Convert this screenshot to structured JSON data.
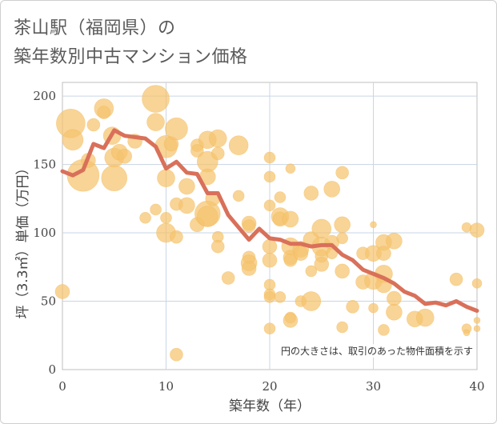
{
  "title_line1": "茶山駅（福岡県）の",
  "title_line2": "築年数別中古マンション価格",
  "chart_data": {
    "type": "scatter",
    "xlabel": "築年数（年）",
    "ylabel": "坪（3.3㎡）単価（万円）",
    "xlim": [
      0,
      40
    ],
    "ylim": [
      0,
      210
    ],
    "xticks": [
      0,
      10,
      20,
      30,
      40
    ],
    "yticks": [
      0,
      50,
      100,
      150,
      200
    ],
    "grid": true,
    "annotation": "円の大きさは、取引のあった物件面積を示す",
    "bubble_color": "#f5c36e",
    "line_color": "#d9705a",
    "bubbles": [
      {
        "x": 0,
        "y": 57,
        "s": 9
      },
      {
        "x": 0.8,
        "y": 180,
        "s": 18
      },
      {
        "x": 1,
        "y": 168,
        "s": 13
      },
      {
        "x": 2,
        "y": 142,
        "s": 20
      },
      {
        "x": 2.5,
        "y": 153,
        "s": 9
      },
      {
        "x": 3,
        "y": 179,
        "s": 8
      },
      {
        "x": 4,
        "y": 191,
        "s": 12
      },
      {
        "x": 4,
        "y": 188,
        "s": 8
      },
      {
        "x": 4.8,
        "y": 171,
        "s": 11
      },
      {
        "x": 5,
        "y": 155,
        "s": 12
      },
      {
        "x": 5,
        "y": 140,
        "s": 16
      },
      {
        "x": 5.5,
        "y": 159,
        "s": 10
      },
      {
        "x": 6,
        "y": 156,
        "s": 9
      },
      {
        "x": 7,
        "y": 167,
        "s": 9
      },
      {
        "x": 8,
        "y": 111,
        "s": 7
      },
      {
        "x": 9,
        "y": 198,
        "s": 17
      },
      {
        "x": 9,
        "y": 181,
        "s": 11
      },
      {
        "x": 9,
        "y": 117,
        "s": 7
      },
      {
        "x": 10,
        "y": 163,
        "s": 14
      },
      {
        "x": 10,
        "y": 140,
        "s": 11
      },
      {
        "x": 10,
        "y": 111,
        "s": 7
      },
      {
        "x": 10,
        "y": 100,
        "s": 12
      },
      {
        "x": 10.5,
        "y": 165,
        "s": 9
      },
      {
        "x": 11,
        "y": 176,
        "s": 14
      },
      {
        "x": 11,
        "y": 121,
        "s": 8
      },
      {
        "x": 11,
        "y": 97,
        "s": 8
      },
      {
        "x": 11,
        "y": 11,
        "s": 8
      },
      {
        "x": 12,
        "y": 134,
        "s": 10
      },
      {
        "x": 12,
        "y": 120,
        "s": 10
      },
      {
        "x": 13,
        "y": 164,
        "s": 8
      },
      {
        "x": 13,
        "y": 160,
        "s": 8
      },
      {
        "x": 13,
        "y": 106,
        "s": 9
      },
      {
        "x": 14,
        "y": 168,
        "s": 11
      },
      {
        "x": 14,
        "y": 152,
        "s": 13
      },
      {
        "x": 14,
        "y": 141,
        "s": 10
      },
      {
        "x": 14,
        "y": 114,
        "s": 16
      },
      {
        "x": 14,
        "y": 112,
        "s": 13
      },
      {
        "x": 14.5,
        "y": 125,
        "s": 9
      },
      {
        "x": 15,
        "y": 169,
        "s": 11
      },
      {
        "x": 15,
        "y": 158,
        "s": 8
      },
      {
        "x": 15,
        "y": 97,
        "s": 7
      },
      {
        "x": 15,
        "y": 90,
        "s": 8
      },
      {
        "x": 16,
        "y": 67,
        "s": 8
      },
      {
        "x": 17,
        "y": 164,
        "s": 12
      },
      {
        "x": 17,
        "y": 127,
        "s": 7
      },
      {
        "x": 18,
        "y": 107,
        "s": 9
      },
      {
        "x": 18,
        "y": 105,
        "s": 8
      },
      {
        "x": 18,
        "y": 82,
        "s": 8
      },
      {
        "x": 18,
        "y": 78,
        "s": 10
      },
      {
        "x": 18,
        "y": 74,
        "s": 9
      },
      {
        "x": 20,
        "y": 155,
        "s": 7
      },
      {
        "x": 20,
        "y": 141,
        "s": 7
      },
      {
        "x": 20,
        "y": 120,
        "s": 7
      },
      {
        "x": 20,
        "y": 90,
        "s": 9
      },
      {
        "x": 20,
        "y": 80,
        "s": 9
      },
      {
        "x": 20,
        "y": 62,
        "s": 7
      },
      {
        "x": 20,
        "y": 55,
        "s": 7
      },
      {
        "x": 20,
        "y": 53,
        "s": 7
      },
      {
        "x": 20,
        "y": 30,
        "s": 7
      },
      {
        "x": 21,
        "y": 126,
        "s": 7
      },
      {
        "x": 21,
        "y": 112,
        "s": 11
      },
      {
        "x": 21,
        "y": 110,
        "s": 9
      },
      {
        "x": 21,
        "y": 53,
        "s": 7
      },
      {
        "x": 22,
        "y": 147,
        "s": 6
      },
      {
        "x": 22,
        "y": 110,
        "s": 10
      },
      {
        "x": 22,
        "y": 90,
        "s": 11
      },
      {
        "x": 22,
        "y": 82,
        "s": 9
      },
      {
        "x": 22,
        "y": 80,
        "s": 8
      },
      {
        "x": 22,
        "y": 38,
        "s": 7
      },
      {
        "x": 22,
        "y": 36,
        "s": 9
      },
      {
        "x": 23,
        "y": 88,
        "s": 10
      },
      {
        "x": 23,
        "y": 85,
        "s": 9
      },
      {
        "x": 23,
        "y": 50,
        "s": 7
      },
      {
        "x": 24,
        "y": 129,
        "s": 9
      },
      {
        "x": 24,
        "y": 95,
        "s": 10
      },
      {
        "x": 24,
        "y": 72,
        "s": 7
      },
      {
        "x": 24,
        "y": 50,
        "s": 12
      },
      {
        "x": 25,
        "y": 103,
        "s": 12
      },
      {
        "x": 25,
        "y": 90,
        "s": 12
      },
      {
        "x": 25,
        "y": 83,
        "s": 8
      },
      {
        "x": 25,
        "y": 77,
        "s": 9
      },
      {
        "x": 26,
        "y": 132,
        "s": 10
      },
      {
        "x": 26,
        "y": 93,
        "s": 9
      },
      {
        "x": 26,
        "y": 85,
        "s": 7
      },
      {
        "x": 27,
        "y": 144,
        "s": 8
      },
      {
        "x": 27,
        "y": 106,
        "s": 10
      },
      {
        "x": 27,
        "y": 96,
        "s": 7
      },
      {
        "x": 27,
        "y": 72,
        "s": 9
      },
      {
        "x": 27,
        "y": 31,
        "s": 7
      },
      {
        "x": 28,
        "y": 46,
        "s": 8
      },
      {
        "x": 29,
        "y": 85,
        "s": 8
      },
      {
        "x": 29,
        "y": 64,
        "s": 9
      },
      {
        "x": 30,
        "y": 106,
        "s": 4
      },
      {
        "x": 30,
        "y": 85,
        "s": 10
      },
      {
        "x": 30,
        "y": 65,
        "s": 11
      },
      {
        "x": 30,
        "y": 45,
        "s": 6
      },
      {
        "x": 31,
        "y": 93,
        "s": 10
      },
      {
        "x": 31,
        "y": 85,
        "s": 9
      },
      {
        "x": 31,
        "y": 70,
        "s": 11
      },
      {
        "x": 31,
        "y": 62,
        "s": 10
      },
      {
        "x": 31,
        "y": 29,
        "s": 7
      },
      {
        "x": 32,
        "y": 94,
        "s": 10
      },
      {
        "x": 32,
        "y": 52,
        "s": 9
      },
      {
        "x": 32,
        "y": 42,
        "s": 10
      },
      {
        "x": 34,
        "y": 37,
        "s": 10
      },
      {
        "x": 35,
        "y": 38,
        "s": 11
      },
      {
        "x": 38,
        "y": 66,
        "s": 8
      },
      {
        "x": 39,
        "y": 104,
        "s": 6
      },
      {
        "x": 39,
        "y": 30,
        "s": 6
      },
      {
        "x": 39,
        "y": 27,
        "s": 4
      },
      {
        "x": 40,
        "y": 102,
        "s": 9
      },
      {
        "x": 40,
        "y": 63,
        "s": 6
      },
      {
        "x": 40,
        "y": 36,
        "s": 4
      },
      {
        "x": 40,
        "y": 30,
        "s": 4
      }
    ],
    "series": [
      {
        "x": [
          0,
          1,
          2,
          3,
          4,
          5,
          6,
          7,
          8,
          9,
          10,
          11,
          12,
          13,
          14,
          15,
          16,
          17,
          18,
          19,
          20,
          21,
          22,
          23,
          24,
          25,
          26,
          27,
          28,
          29,
          30,
          31,
          32,
          33,
          34,
          35,
          36,
          37,
          38,
          39,
          40
        ],
        "values": [
          145,
          142,
          146,
          165,
          162,
          175,
          171,
          170,
          169,
          163,
          147,
          152,
          144,
          143,
          129,
          129,
          113,
          104,
          95,
          103,
          96,
          95,
          92,
          92,
          90,
          91,
          91,
          84,
          80,
          73,
          70,
          67,
          63,
          57,
          54,
          48,
          49,
          47,
          50,
          46,
          43
        ]
      }
    ]
  }
}
